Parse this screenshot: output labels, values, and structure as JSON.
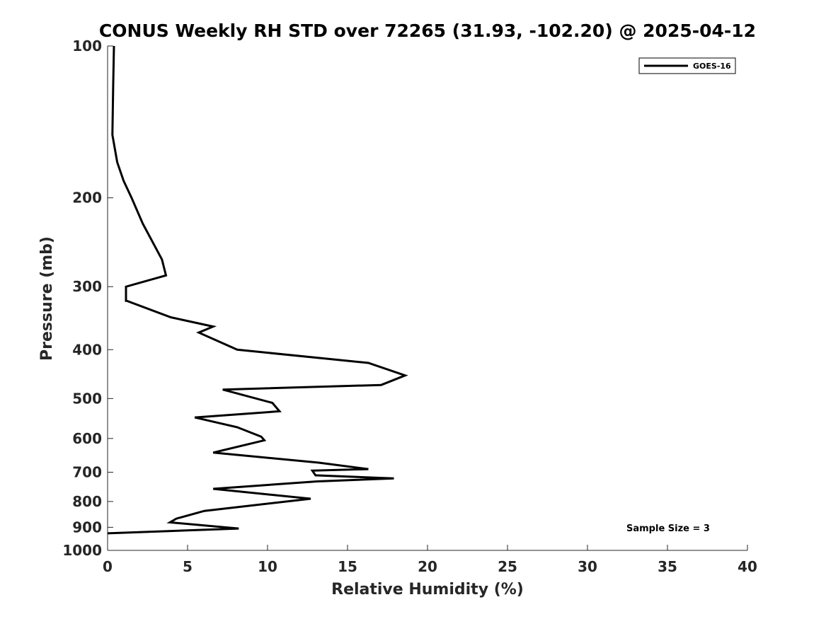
{
  "chart_data": {
    "type": "line",
    "title": "CONUS Weekly RH STD over 72265 (31.93, -102.20) @ 2025-04-12",
    "xlabel": "Relative Humidity (%)",
    "ylabel": "Pressure (mb)",
    "xlim": [
      0,
      40
    ],
    "ylim": [
      1000,
      100
    ],
    "yscale": "log",
    "y_reversed": true,
    "grid": false,
    "legend_position": "top-right",
    "x_ticks": [
      0,
      5,
      10,
      15,
      20,
      25,
      30,
      35,
      40
    ],
    "x_tick_labels": [
      "0",
      "5",
      "10",
      "15",
      "20",
      "25",
      "30",
      "35",
      "40"
    ],
    "y_ticks": [
      100,
      200,
      300,
      400,
      500,
      600,
      700,
      800,
      900,
      1000
    ],
    "y_tick_labels": [
      "100",
      "200",
      "300",
      "400",
      "500",
      "600",
      "700",
      "800",
      "900",
      "1000"
    ],
    "annotation": "Sample Size = 3",
    "series": [
      {
        "name": "GOES-16",
        "color": "#000000",
        "x": [
          0.4,
          0.35,
          0.3,
          0.6,
          1.0,
          1.5,
          2.2,
          3.4,
          3.65,
          1.15,
          1.15,
          1.2,
          3.95,
          6.6,
          5.7,
          8.1,
          16.3,
          18.6,
          17.1,
          7.2,
          10.3,
          10.75,
          5.45,
          8.1,
          9.6,
          9.8,
          6.6,
          13.2,
          16.3,
          12.8,
          12.8,
          13.0,
          17.9,
          13.1,
          6.6,
          12.7,
          6.05,
          4.3,
          3.9,
          8.2,
          0.0
        ],
        "y": [
          100,
          120,
          150,
          170,
          185,
          200,
          225,
          265,
          285,
          300,
          320,
          320,
          345,
          360,
          370,
          400,
          425,
          450,
          470,
          480,
          510,
          530,
          545,
          570,
          595,
          605,
          640,
          670,
          690,
          695,
          695,
          710,
          720,
          730,
          755,
          790,
          835,
          865,
          880,
          905,
          925
        ]
      }
    ]
  }
}
